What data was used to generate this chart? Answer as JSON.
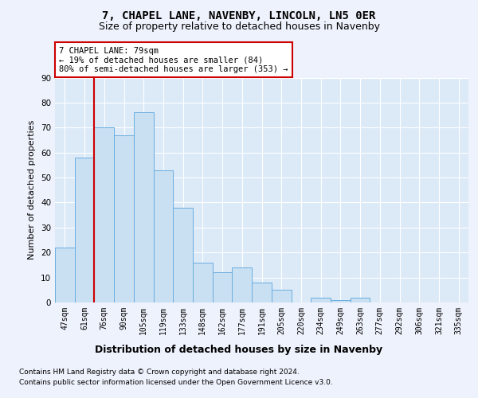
{
  "title": "7, CHAPEL LANE, NAVENBY, LINCOLN, LN5 0ER",
  "subtitle": "Size of property relative to detached houses in Navenby",
  "xlabel": "Distribution of detached houses by size in Navenby",
  "ylabel": "Number of detached properties",
  "categories": [
    "47sqm",
    "61sqm",
    "76sqm",
    "90sqm",
    "105sqm",
    "119sqm",
    "133sqm",
    "148sqm",
    "162sqm",
    "177sqm",
    "191sqm",
    "205sqm",
    "220sqm",
    "234sqm",
    "249sqm",
    "263sqm",
    "277sqm",
    "292sqm",
    "306sqm",
    "321sqm",
    "335sqm"
  ],
  "values": [
    22,
    58,
    70,
    67,
    76,
    53,
    38,
    16,
    12,
    14,
    8,
    5,
    0,
    2,
    1,
    2,
    0,
    0,
    0,
    0,
    0
  ],
  "bar_color": "#c9dff2",
  "bar_edge_color": "#6aaee0",
  "red_line_index": 2,
  "annotation_text": "7 CHAPEL LANE: 79sqm\n← 19% of detached houses are smaller (84)\n80% of semi-detached houses are larger (353) →",
  "annotation_box_color": "#ffffff",
  "annotation_box_edge": "#cc0000",
  "annotation_text_size": 7.5,
  "ylim": [
    0,
    90
  ],
  "yticks": [
    0,
    10,
    20,
    30,
    40,
    50,
    60,
    70,
    80,
    90
  ],
  "title_fontsize": 10,
  "subtitle_fontsize": 9,
  "xlabel_fontsize": 9,
  "ylabel_fontsize": 8,
  "tick_fontsize": 7,
  "footer_line1": "Contains HM Land Registry data © Crown copyright and database right 2024.",
  "footer_line2": "Contains public sector information licensed under the Open Government Licence v3.0.",
  "footer_fontsize": 6.5,
  "background_color": "#eef2fc",
  "grid_color": "#ffffff",
  "axes_bg_color": "#dce9f7"
}
